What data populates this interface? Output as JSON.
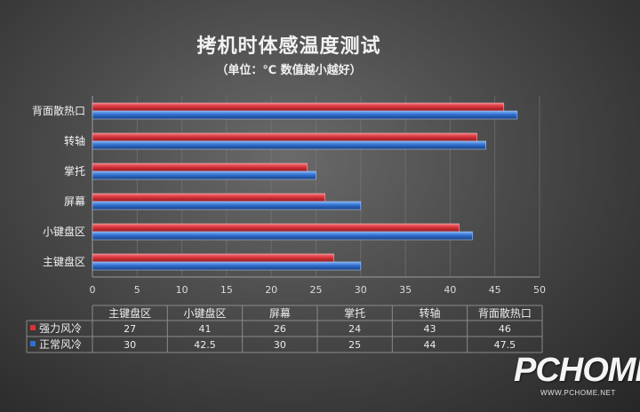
{
  "chart_data": {
    "type": "bar",
    "orientation": "horizontal",
    "title": "拷机时体感温度测试",
    "subtitle": "（单位：℃ 数值越小越好）",
    "categories": [
      "主键盘区",
      "小键盘区",
      "屏幕",
      "掌托",
      "转轴",
      "背面散热口"
    ],
    "series": [
      {
        "name": "强力风冷",
        "color": "#d9323a",
        "values": [
          27,
          41,
          26,
          24,
          43,
          46
        ]
      },
      {
        "name": "正常风冷",
        "color": "#2f6fd0",
        "values": [
          30,
          42.5,
          30,
          25,
          44,
          47.5
        ]
      }
    ],
    "xlim": [
      0,
      50
    ],
    "xticks": [
      0,
      5,
      10,
      15,
      20,
      25,
      30,
      35,
      40,
      45,
      50
    ],
    "grid": true,
    "legend": "table-bottom",
    "data_table": {
      "headers": [
        "主键盘区",
        "小键盘区",
        "屏幕",
        "掌托",
        "转轴",
        "背面散热口"
      ],
      "rows": [
        {
          "label": "强力风冷",
          "values": [
            "27",
            "41",
            "26",
            "24",
            "43",
            "46"
          ]
        },
        {
          "label": "正常风冷",
          "values": [
            "30",
            "42.5",
            "30",
            "25",
            "44",
            "47.5"
          ]
        }
      ]
    }
  },
  "watermark": {
    "brand": "PCHOME",
    "url": "WWW.PCHOME.NET"
  }
}
